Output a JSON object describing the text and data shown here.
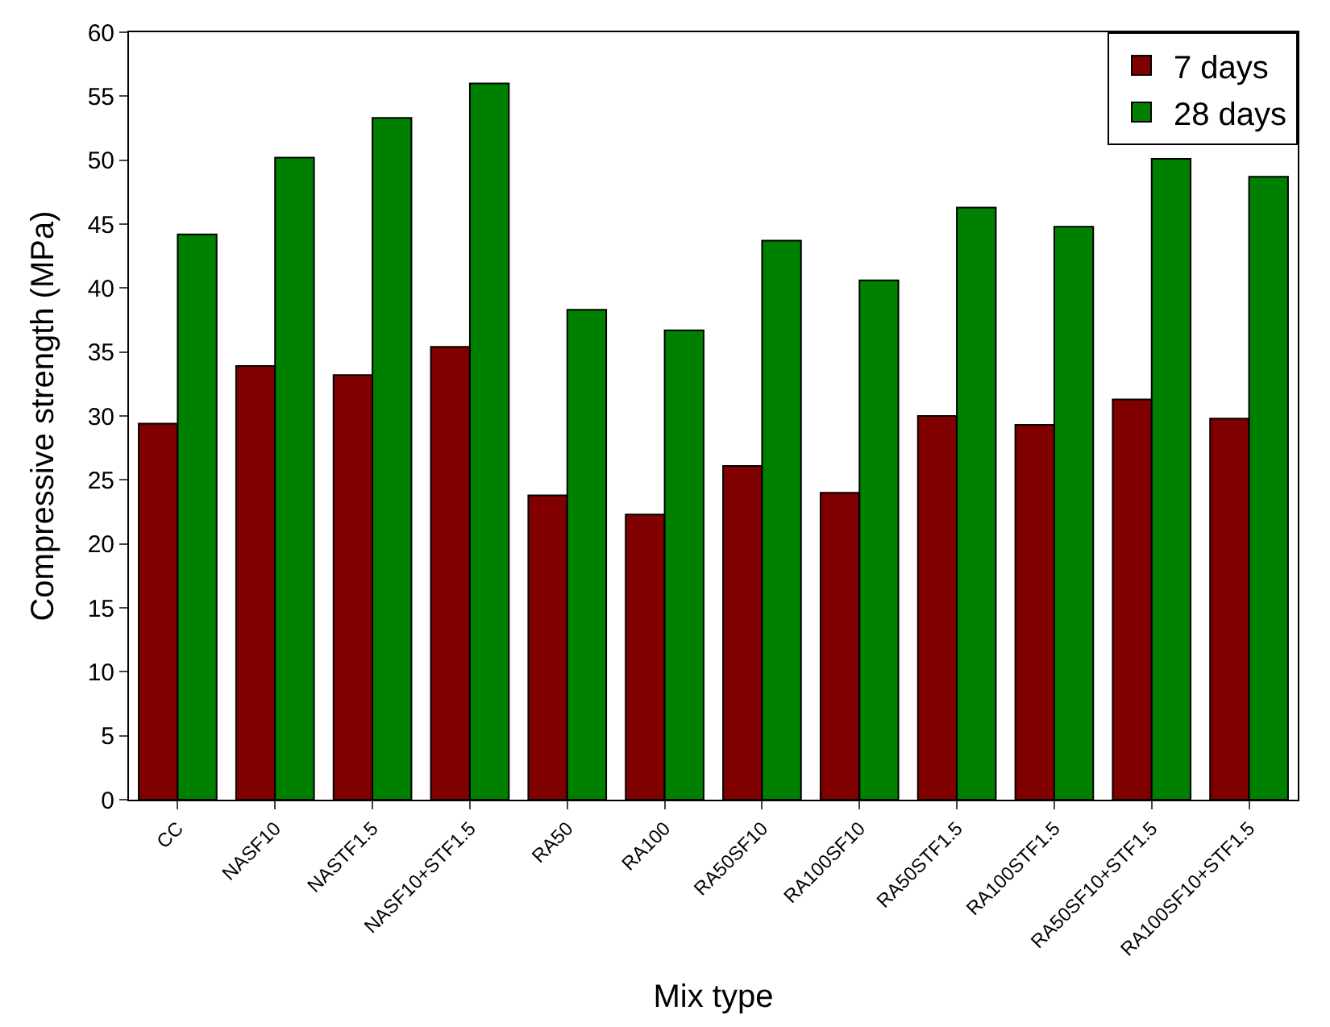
{
  "chart_data": {
    "type": "bar",
    "xlabel": "Mix type",
    "ylabel": "Compressive strength (MPa)",
    "categories": [
      "CC",
      "NASF10",
      "NASTF1.5",
      "NASF10+STF1.5",
      "RA50",
      "RA100",
      "RA50SF10",
      "RA100SF10",
      "RA50STF1.5",
      "RA100STF1.5",
      "RA50SF10+STF1.5",
      "RA100SF10+STF1.5"
    ],
    "series": [
      {
        "name": "7 days",
        "color": "#800000",
        "values": [
          29.4,
          33.9,
          33.2,
          35.4,
          23.8,
          22.3,
          26.1,
          24.0,
          30.0,
          29.3,
          31.3,
          29.8
        ]
      },
      {
        "name": "28 days",
        "color": "#008000",
        "values": [
          44.2,
          50.2,
          53.3,
          56.0,
          38.3,
          36.7,
          43.7,
          40.6,
          46.3,
          44.8,
          50.1,
          48.7
        ]
      }
    ],
    "ylim": [
      0,
      60
    ],
    "yticks": [
      0,
      5,
      10,
      15,
      20,
      25,
      30,
      35,
      40,
      45,
      50,
      55,
      60
    ],
    "legend": "top right"
  }
}
